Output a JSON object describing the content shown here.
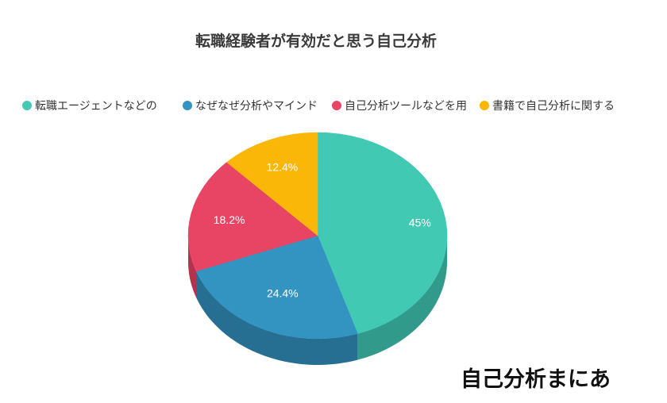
{
  "chart_data": {
    "type": "pie",
    "title": "転職経験者が有効だと思う自己分析",
    "categories": [
      "転職エージェントなどの",
      "なぜなぜ分析やマインド",
      "自己分析ツールなどを用",
      "書籍で自己分析に関する"
    ],
    "values": [
      45,
      24.4,
      18.2,
      12.4
    ],
    "value_labels": [
      "45%",
      "24.4%",
      "18.2%",
      "12.4%"
    ],
    "colors": [
      "#41c9b4",
      "#3393c1",
      "#e84464",
      "#fbb707"
    ],
    "side_colors": [
      "#329a8a",
      "#276f92",
      "#b3324c",
      "#c48f05"
    ],
    "legend_position": "top",
    "style": "3d"
  },
  "watermark": {
    "text": "自己分析まにあ"
  }
}
